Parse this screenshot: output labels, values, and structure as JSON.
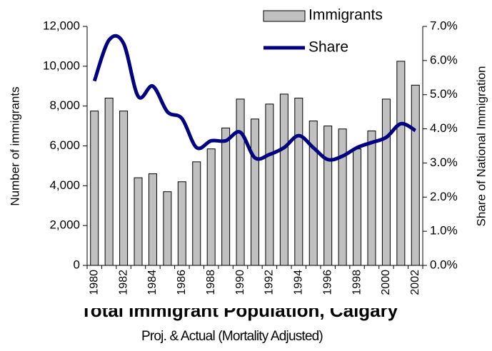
{
  "chart_data": {
    "type": "bar-line",
    "title": "Total Immigrant Population, Calgary",
    "subtitle": "Proj. & Actual (Mortality Adjusted)",
    "ylabel": "Number of immigrants",
    "y2label": "Share of National Immigration",
    "categories": [
      "1980",
      null,
      "1982",
      null,
      "1984",
      null,
      "1986",
      null,
      "1988",
      null,
      "1990",
      null,
      "1992",
      null,
      "1994",
      null,
      "1996",
      null,
      "1998",
      null,
      "2000",
      null,
      "2002"
    ],
    "series": [
      {
        "name": "Immigrants",
        "type": "bar",
        "color": "#c0c0c0",
        "values": [
          7750,
          8400,
          7750,
          4400,
          4600,
          3700,
          4200,
          5200,
          5850,
          6900,
          8350,
          7350,
          8100,
          8600,
          8400,
          7250,
          7000,
          6850,
          5850,
          6750,
          8350,
          10250,
          9050
        ]
      },
      {
        "name": "Share",
        "type": "line",
        "axis": "y2",
        "color": "#000080",
        "values": [
          5.4,
          6.6,
          6.5,
          4.95,
          5.25,
          4.5,
          4.3,
          3.45,
          3.65,
          3.65,
          3.9,
          3.15,
          3.25,
          3.45,
          3.8,
          3.45,
          3.1,
          3.2,
          3.45,
          3.6,
          3.75,
          4.15,
          3.95
        ]
      }
    ],
    "ylim": [
      0,
      12000
    ],
    "yticks": [
      0,
      {
        "value": 2000,
        "label": "2,000"
      },
      {
        "value": 4000,
        "label": "4,000"
      },
      {
        "value": 6000,
        "label": "6,000"
      },
      {
        "value": 8000,
        "label": "8,000"
      },
      {
        "value": 10000,
        "label": "10,000"
      },
      {
        "value": 12000,
        "label": "12,000"
      }
    ],
    "y2lim": [
      0,
      7
    ],
    "y2ticks": [
      {
        "value": 0,
        "label": "0.0%"
      },
      {
        "value": 1,
        "label": "1.0%"
      },
      {
        "value": 2,
        "label": "2.0%"
      },
      {
        "value": 3,
        "label": "3.0%"
      },
      {
        "value": 4,
        "label": "4.0%"
      },
      {
        "value": 5,
        "label": "5.0%"
      },
      {
        "value": 6,
        "label": "6.0%"
      },
      {
        "value": 7,
        "label": "7.0%"
      }
    ],
    "legend": "top-right",
    "grid": false
  }
}
